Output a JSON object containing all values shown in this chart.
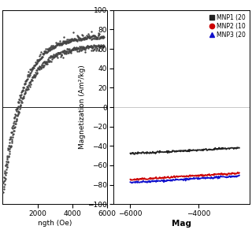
{
  "background_color": "#ffffff",
  "left_plot": {
    "xlabel": "ngth (Oe)",
    "xlim": [
      0,
      6000
    ],
    "xticks": [
      2000,
      4000,
      6000
    ],
    "ylim": [
      -5,
      90
    ],
    "data_color": "#444444",
    "scatter_size": 3
  },
  "right_plot": {
    "ylabel": "Magnetization (Am²/kg)",
    "xlabel": "Mag",
    "xlim": [
      -6500,
      -2500
    ],
    "xticks": [
      -6000,
      -4000
    ],
    "ylim": [
      -100,
      100
    ],
    "yticks": [
      -100,
      -80,
      -60,
      -40,
      -20,
      0,
      20,
      40,
      60,
      80,
      100
    ],
    "legend_entries": [
      "MNP1 (20",
      "MNP2 (10",
      "MNP3 (20"
    ],
    "legend_colors": [
      "#222222",
      "#cc0000",
      "#1111cc"
    ],
    "legend_markers": [
      "s",
      "o",
      "^"
    ],
    "mnp1_y_start": -48,
    "mnp1_y_end": -42,
    "mnp2_y_start": -75,
    "mnp2_y_end": -68,
    "mnp3_y_start": -78,
    "mnp3_y_end": -71
  }
}
